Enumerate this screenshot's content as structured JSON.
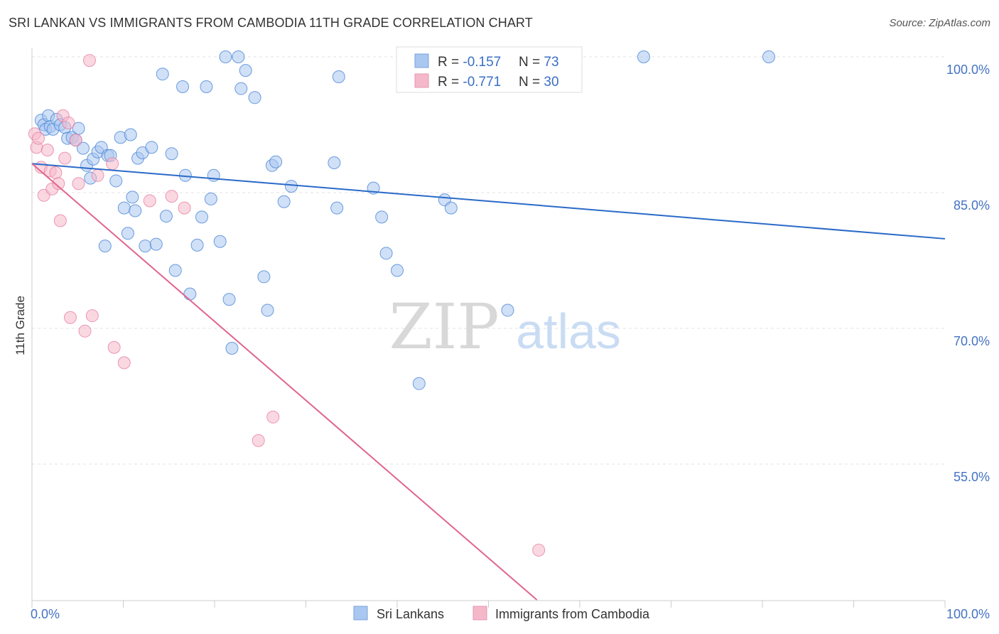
{
  "header": {
    "title": "SRI LANKAN VS IMMIGRANTS FROM CAMBODIA 11TH GRADE CORRELATION CHART",
    "source": "Source: ZipAtlas.com"
  },
  "watermark": {
    "zip": "ZIP",
    "atlas": "atlas"
  },
  "legend_top": [
    {
      "r_label": "R = ",
      "r_value": "-0.157",
      "n_label": "N = ",
      "n_value": "73",
      "color": "#a9c7f0"
    },
    {
      "r_label": "R = ",
      "r_value": "-0.771",
      "n_label": "N = ",
      "n_value": "30",
      "color": "#f5b8cb"
    }
  ],
  "legend_bottom": [
    {
      "label": "Sri Lankans",
      "color": "#a9c7f0"
    },
    {
      "label": "Immigrants from Cambodia",
      "color": "#f5b8cb"
    }
  ],
  "chart_data": {
    "type": "scatter",
    "title": "SRI LANKAN VS IMMIGRANTS FROM CAMBODIA 11TH GRADE CORRELATION CHART",
    "xlabel": "",
    "ylabel": "11th Grade",
    "xlim": [
      0,
      100
    ],
    "ylim": [
      40,
      102
    ],
    "x_tick_labels": [
      "0.0%",
      "100.0%"
    ],
    "y_ticks": [
      55,
      70,
      85,
      100
    ],
    "y_tick_labels": [
      "55.0%",
      "70.0%",
      "85.0%",
      "100.0%"
    ],
    "grid": true,
    "series": [
      {
        "name": "Sri Lankans",
        "color": "#4a86d6",
        "fill": "#a9c7f0",
        "trend": {
          "x": [
            0,
            100
          ],
          "y": [
            88.2,
            79.9
          ],
          "color": "#2a6ac8"
        },
        "points": [
          [
            1.0,
            93.0
          ],
          [
            1.3,
            92.5
          ],
          [
            1.5,
            92.0
          ],
          [
            1.8,
            93.5
          ],
          [
            2.0,
            92.3
          ],
          [
            2.3,
            92.0
          ],
          [
            2.7,
            93.1
          ],
          [
            3.1,
            92.5
          ],
          [
            3.6,
            92.2
          ],
          [
            3.9,
            91.0
          ],
          [
            4.4,
            91.1
          ],
          [
            4.8,
            90.8
          ],
          [
            5.1,
            92.1
          ],
          [
            5.6,
            89.9
          ],
          [
            6.0,
            88.0
          ],
          [
            6.4,
            86.6
          ],
          [
            6.7,
            88.7
          ],
          [
            7.2,
            89.5
          ],
          [
            7.6,
            90.0
          ],
          [
            8.0,
            79.1
          ],
          [
            8.3,
            89.1
          ],
          [
            8.6,
            89.1
          ],
          [
            9.2,
            86.3
          ],
          [
            9.7,
            91.1
          ],
          [
            10.1,
            83.3
          ],
          [
            10.5,
            80.5
          ],
          [
            10.8,
            91.4
          ],
          [
            11.0,
            84.5
          ],
          [
            11.3,
            83.0
          ],
          [
            11.6,
            88.8
          ],
          [
            12.1,
            89.4
          ],
          [
            12.4,
            79.1
          ],
          [
            13.1,
            90.0
          ],
          [
            13.6,
            79.3
          ],
          [
            14.3,
            98.1
          ],
          [
            14.7,
            82.4
          ],
          [
            15.3,
            89.3
          ],
          [
            15.7,
            76.4
          ],
          [
            16.5,
            96.7
          ],
          [
            16.8,
            86.9
          ],
          [
            17.3,
            73.8
          ],
          [
            18.1,
            79.2
          ],
          [
            18.6,
            82.3
          ],
          [
            19.1,
            96.7
          ],
          [
            19.6,
            84.3
          ],
          [
            19.9,
            86.9
          ],
          [
            20.6,
            79.6
          ],
          [
            21.2,
            100.0
          ],
          [
            21.6,
            73.2
          ],
          [
            21.9,
            67.8
          ],
          [
            22.6,
            100.0
          ],
          [
            22.9,
            96.5
          ],
          [
            23.4,
            98.5
          ],
          [
            24.4,
            95.5
          ],
          [
            25.4,
            75.7
          ],
          [
            25.8,
            72.0
          ],
          [
            26.3,
            88.0
          ],
          [
            26.7,
            88.4
          ],
          [
            27.6,
            84.0
          ],
          [
            28.4,
            85.7
          ],
          [
            33.1,
            88.3
          ],
          [
            33.4,
            83.3
          ],
          [
            33.6,
            97.8
          ],
          [
            37.4,
            85.5
          ],
          [
            38.3,
            82.3
          ],
          [
            38.8,
            78.3
          ],
          [
            40.0,
            76.4
          ],
          [
            42.4,
            63.9
          ],
          [
            45.2,
            84.2
          ],
          [
            45.9,
            83.3
          ],
          [
            52.1,
            72.0
          ],
          [
            67.0,
            100.0
          ],
          [
            80.7,
            100.0
          ]
        ]
      },
      {
        "name": "Immigrants from Cambodia",
        "color": "#e77fa2",
        "fill": "#f5b8cb",
        "trend": {
          "x": [
            0,
            55.3
          ],
          "y": [
            88.2,
            40.0
          ],
          "color": "#e0658f"
        },
        "points": [
          [
            0.3,
            91.5
          ],
          [
            0.5,
            90.0
          ],
          [
            0.7,
            91.0
          ],
          [
            1.0,
            87.8
          ],
          [
            1.3,
            84.7
          ],
          [
            1.7,
            89.7
          ],
          [
            2.0,
            87.4
          ],
          [
            2.2,
            85.4
          ],
          [
            2.6,
            87.2
          ],
          [
            2.9,
            86.0
          ],
          [
            3.1,
            81.9
          ],
          [
            3.4,
            93.5
          ],
          [
            3.6,
            88.8
          ],
          [
            4.0,
            92.7
          ],
          [
            4.2,
            71.2
          ],
          [
            4.8,
            90.8
          ],
          [
            5.1,
            86.0
          ],
          [
            5.8,
            69.7
          ],
          [
            6.3,
            99.6
          ],
          [
            6.6,
            71.4
          ],
          [
            7.2,
            86.9
          ],
          [
            8.8,
            88.2
          ],
          [
            9.0,
            67.9
          ],
          [
            10.1,
            66.2
          ],
          [
            12.9,
            84.1
          ],
          [
            15.3,
            84.6
          ],
          [
            16.7,
            83.3
          ],
          [
            24.8,
            57.6
          ],
          [
            26.4,
            60.2
          ],
          [
            55.5,
            45.5
          ]
        ]
      }
    ]
  }
}
